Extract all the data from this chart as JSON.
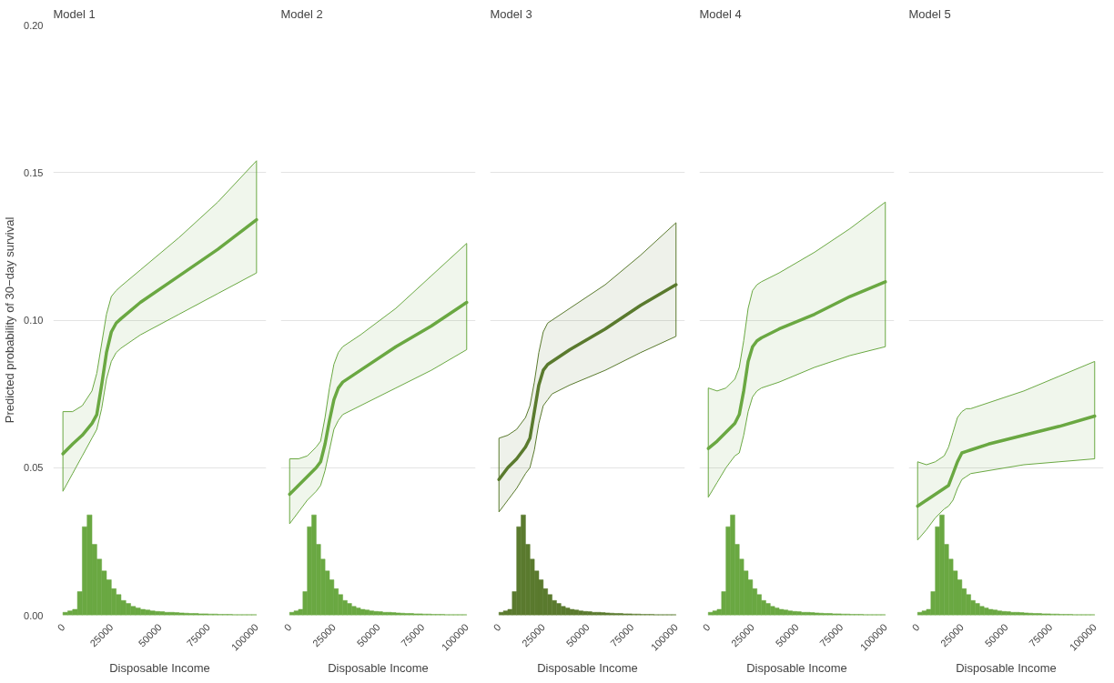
{
  "chart_data": [
    {
      "type": "line",
      "title": "Model 1",
      "xlabel": "Disposable Income",
      "ylabel": "Predicted probability of 30−day survival",
      "grid": "y",
      "xlim": [
        -5000,
        105000
      ],
      "xticks": [
        0,
        25000,
        50000,
        75000,
        100000
      ],
      "ylim": [
        0,
        0.2
      ],
      "yticks": [
        {
          "value": 0,
          "label": "0.00"
        },
        {
          "value": 0.05,
          "label": "0.05"
        },
        {
          "value": 0.1,
          "label": "0.10"
        },
        {
          "value": 0.15,
          "label": "0.15"
        },
        {
          "value": 0.2,
          "label": "0.20"
        }
      ],
      "series": [
        {
          "color": "#6aa842",
          "x": [
            0,
            5000,
            10000,
            15000,
            17500,
            20000,
            22500,
            25000,
            27500,
            30000,
            40000,
            60000,
            80000,
            100000
          ],
          "values": [
            0.0547,
            0.058,
            0.061,
            0.065,
            0.068,
            0.078,
            0.089,
            0.096,
            0.099,
            0.1005,
            0.106,
            0.115,
            0.124,
            0.134
          ],
          "lower": [
            0.042,
            0.048,
            0.054,
            0.06,
            0.063,
            0.07,
            0.08,
            0.086,
            0.089,
            0.0905,
            0.095,
            0.102,
            0.109,
            0.116
          ],
          "upper": [
            0.069,
            0.069,
            0.071,
            0.076,
            0.082,
            0.092,
            0.102,
            0.108,
            0.11,
            0.1115,
            0.117,
            0.128,
            0.14,
            0.154
          ]
        },
        {
          "type": "histogram",
          "color": "#6aa842",
          "bins": [
            0,
            2500,
            5000,
            7500,
            10000,
            12500,
            15000,
            17500,
            20000,
            22500,
            25000,
            27500,
            30000,
            32500,
            35000,
            37500,
            40000,
            42500,
            45000,
            47500,
            50000,
            52500,
            55000,
            57500,
            60000,
            62500,
            65000,
            67500,
            70000,
            72500,
            75000,
            77500,
            80000,
            82500,
            85000,
            87500,
            90000,
            92500,
            95000,
            97500,
            100000
          ],
          "values": [
            0.001,
            0.0015,
            0.002,
            0.008,
            0.03,
            0.034,
            0.024,
            0.019,
            0.015,
            0.012,
            0.009,
            0.007,
            0.005,
            0.004,
            0.003,
            0.0025,
            0.002,
            0.0018,
            0.0015,
            0.0013,
            0.0012,
            0.001,
            0.001,
            0.0009,
            0.0008,
            0.0007,
            0.0006,
            0.0006,
            0.0005,
            0.0005,
            0.0004,
            0.0004,
            0.0003,
            0.0003,
            0.0003,
            0.0002,
            0.0002,
            0.0002,
            0.0002,
            0.0002
          ]
        }
      ]
    },
    {
      "type": "line",
      "title": "Model 2",
      "xlabel": "Disposable Income",
      "grid": "y",
      "tick_labels": "x",
      "xlim": [
        -5000,
        105000
      ],
      "xticks": [
        0,
        25000,
        50000,
        75000,
        100000
      ],
      "ylim": [
        0,
        0.2
      ],
      "yticks": [
        0,
        0.05,
        0.1,
        0.15,
        0.2
      ],
      "series": [
        {
          "color": "#6aa842",
          "x": [
            0,
            5000,
            10000,
            15000,
            17500,
            20000,
            22500,
            25000,
            27500,
            30000,
            40000,
            60000,
            80000,
            100000
          ],
          "values": [
            0.041,
            0.044,
            0.047,
            0.05,
            0.052,
            0.058,
            0.066,
            0.073,
            0.077,
            0.079,
            0.083,
            0.091,
            0.098,
            0.106
          ],
          "lower": [
            0.031,
            0.035,
            0.039,
            0.042,
            0.044,
            0.049,
            0.056,
            0.063,
            0.066,
            0.068,
            0.071,
            0.077,
            0.083,
            0.09
          ],
          "upper": [
            0.053,
            0.053,
            0.054,
            0.057,
            0.059,
            0.067,
            0.077,
            0.085,
            0.089,
            0.091,
            0.095,
            0.104,
            0.115,
            0.126
          ]
        },
        {
          "type": "histogram",
          "color": "#6aa842",
          "bins": [
            0,
            2500,
            5000,
            7500,
            10000,
            12500,
            15000,
            17500,
            20000,
            22500,
            25000,
            27500,
            30000,
            32500,
            35000,
            37500,
            40000,
            42500,
            45000,
            47500,
            50000,
            52500,
            55000,
            57500,
            60000,
            62500,
            65000,
            67500,
            70000,
            72500,
            75000,
            77500,
            80000,
            82500,
            85000,
            87500,
            90000,
            92500,
            95000,
            97500,
            100000
          ],
          "values": [
            0.001,
            0.0015,
            0.002,
            0.008,
            0.03,
            0.034,
            0.024,
            0.019,
            0.015,
            0.012,
            0.009,
            0.007,
            0.005,
            0.004,
            0.003,
            0.0025,
            0.002,
            0.0018,
            0.0015,
            0.0013,
            0.0012,
            0.001,
            0.001,
            0.0009,
            0.0008,
            0.0007,
            0.0006,
            0.0006,
            0.0005,
            0.0005,
            0.0004,
            0.0004,
            0.0003,
            0.0003,
            0.0003,
            0.0002,
            0.0002,
            0.0002,
            0.0002,
            0.0002
          ]
        }
      ]
    },
    {
      "type": "line",
      "title": "Model 3",
      "xlabel": "Disposable Income",
      "grid": "y",
      "tick_labels": "x",
      "xlim": [
        -5000,
        105000
      ],
      "xticks": [
        0,
        25000,
        50000,
        75000,
        100000
      ],
      "ylim": [
        0,
        0.2
      ],
      "yticks": [
        0,
        0.05,
        0.1,
        0.15,
        0.2
      ],
      "series": [
        {
          "color": "#5a7a2e",
          "x": [
            0,
            5000,
            10000,
            15000,
            17500,
            20000,
            22500,
            25000,
            27500,
            30000,
            40000,
            60000,
            80000,
            100000
          ],
          "values": [
            0.046,
            0.05,
            0.053,
            0.057,
            0.06,
            0.069,
            0.078,
            0.083,
            0.085,
            0.086,
            0.09,
            0.097,
            0.105,
            0.112
          ],
          "lower": [
            0.035,
            0.039,
            0.043,
            0.048,
            0.05,
            0.056,
            0.065,
            0.071,
            0.073,
            0.075,
            0.078,
            0.083,
            0.089,
            0.0945
          ],
          "upper": [
            0.06,
            0.061,
            0.063,
            0.067,
            0.071,
            0.079,
            0.089,
            0.096,
            0.099,
            0.1,
            0.104,
            0.112,
            0.122,
            0.133
          ]
        },
        {
          "type": "histogram",
          "color": "#5a7a2e",
          "bins": [
            0,
            2500,
            5000,
            7500,
            10000,
            12500,
            15000,
            17500,
            20000,
            22500,
            25000,
            27500,
            30000,
            32500,
            35000,
            37500,
            40000,
            42500,
            45000,
            47500,
            50000,
            52500,
            55000,
            57500,
            60000,
            62500,
            65000,
            67500,
            70000,
            72500,
            75000,
            77500,
            80000,
            82500,
            85000,
            87500,
            90000,
            92500,
            95000,
            97500,
            100000
          ],
          "values": [
            0.001,
            0.0015,
            0.002,
            0.008,
            0.03,
            0.034,
            0.024,
            0.019,
            0.015,
            0.012,
            0.009,
            0.007,
            0.005,
            0.004,
            0.003,
            0.0025,
            0.002,
            0.0018,
            0.0015,
            0.0013,
            0.0012,
            0.001,
            0.001,
            0.0009,
            0.0008,
            0.0007,
            0.0006,
            0.0006,
            0.0005,
            0.0005,
            0.0004,
            0.0004,
            0.0003,
            0.0003,
            0.0003,
            0.0002,
            0.0002,
            0.0002,
            0.0002,
            0.0002
          ]
        }
      ]
    },
    {
      "type": "line",
      "title": "Model 4",
      "xlabel": "Disposable Income",
      "grid": "y",
      "tick_labels": "x",
      "xlim": [
        -5000,
        105000
      ],
      "xticks": [
        0,
        25000,
        50000,
        75000,
        100000
      ],
      "ylim": [
        0,
        0.2
      ],
      "yticks": [
        0,
        0.05,
        0.1,
        0.15,
        0.2
      ],
      "series": [
        {
          "color": "#6aa842",
          "x": [
            0,
            5000,
            10000,
            15000,
            17500,
            20000,
            22500,
            25000,
            27500,
            30000,
            40000,
            60000,
            80000,
            100000
          ],
          "values": [
            0.0565,
            0.059,
            0.062,
            0.065,
            0.068,
            0.076,
            0.086,
            0.091,
            0.093,
            0.094,
            0.097,
            0.102,
            0.108,
            0.113
          ],
          "lower": [
            0.04,
            0.045,
            0.05,
            0.054,
            0.055,
            0.061,
            0.069,
            0.074,
            0.076,
            0.077,
            0.079,
            0.084,
            0.088,
            0.091
          ],
          "upper": [
            0.077,
            0.076,
            0.077,
            0.08,
            0.084,
            0.093,
            0.104,
            0.11,
            0.112,
            0.113,
            0.116,
            0.123,
            0.131,
            0.14
          ]
        },
        {
          "type": "histogram",
          "color": "#6aa842",
          "bins": [
            0,
            2500,
            5000,
            7500,
            10000,
            12500,
            15000,
            17500,
            20000,
            22500,
            25000,
            27500,
            30000,
            32500,
            35000,
            37500,
            40000,
            42500,
            45000,
            47500,
            50000,
            52500,
            55000,
            57500,
            60000,
            62500,
            65000,
            67500,
            70000,
            72500,
            75000,
            77500,
            80000,
            82500,
            85000,
            87500,
            90000,
            92500,
            95000,
            97500,
            100000
          ],
          "values": [
            0.001,
            0.0015,
            0.002,
            0.008,
            0.03,
            0.034,
            0.024,
            0.019,
            0.015,
            0.012,
            0.009,
            0.007,
            0.005,
            0.004,
            0.003,
            0.0025,
            0.002,
            0.0018,
            0.0015,
            0.0013,
            0.0012,
            0.001,
            0.001,
            0.0009,
            0.0008,
            0.0007,
            0.0006,
            0.0006,
            0.0005,
            0.0005,
            0.0004,
            0.0004,
            0.0003,
            0.0003,
            0.0003,
            0.0002,
            0.0002,
            0.0002,
            0.0002,
            0.0002
          ]
        }
      ]
    },
    {
      "type": "line",
      "title": "Model 5",
      "xlabel": "Disposable Income",
      "grid": "y",
      "tick_labels": "x",
      "xlim": [
        -5000,
        105000
      ],
      "xticks": [
        0,
        25000,
        50000,
        75000,
        100000
      ],
      "ylim": [
        0,
        0.2
      ],
      "yticks": [
        0,
        0.05,
        0.1,
        0.15,
        0.2
      ],
      "series": [
        {
          "color": "#6aa842",
          "x": [
            0,
            5000,
            10000,
            15000,
            17500,
            20000,
            22500,
            25000,
            27500,
            30000,
            40000,
            60000,
            80000,
            100000
          ],
          "values": [
            0.037,
            0.039,
            0.041,
            0.043,
            0.044,
            0.048,
            0.052,
            0.055,
            0.0555,
            0.056,
            0.058,
            0.061,
            0.064,
            0.0675
          ],
          "lower": [
            0.0255,
            0.029,
            0.033,
            0.036,
            0.037,
            0.039,
            0.043,
            0.046,
            0.047,
            0.048,
            0.049,
            0.051,
            0.052,
            0.053
          ],
          "upper": [
            0.052,
            0.051,
            0.052,
            0.054,
            0.057,
            0.062,
            0.067,
            0.069,
            0.07,
            0.07,
            0.072,
            0.076,
            0.081,
            0.086
          ]
        },
        {
          "type": "histogram",
          "color": "#6aa842",
          "bins": [
            0,
            2500,
            5000,
            7500,
            10000,
            12500,
            15000,
            17500,
            20000,
            22500,
            25000,
            27500,
            30000,
            32500,
            35000,
            37500,
            40000,
            42500,
            45000,
            47500,
            50000,
            52500,
            55000,
            57500,
            60000,
            62500,
            65000,
            67500,
            70000,
            72500,
            75000,
            77500,
            80000,
            82500,
            85000,
            87500,
            90000,
            92500,
            95000,
            97500,
            100000
          ],
          "values": [
            0.001,
            0.0015,
            0.002,
            0.008,
            0.03,
            0.034,
            0.024,
            0.019,
            0.015,
            0.012,
            0.009,
            0.007,
            0.005,
            0.004,
            0.003,
            0.0025,
            0.002,
            0.0018,
            0.0015,
            0.0013,
            0.0012,
            0.001,
            0.001,
            0.0009,
            0.0008,
            0.0007,
            0.0006,
            0.0006,
            0.0005,
            0.0005,
            0.0004,
            0.0004,
            0.0003,
            0.0003,
            0.0003,
            0.0002,
            0.0002,
            0.0002,
            0.0002,
            0.0002
          ]
        }
      ]
    }
  ]
}
